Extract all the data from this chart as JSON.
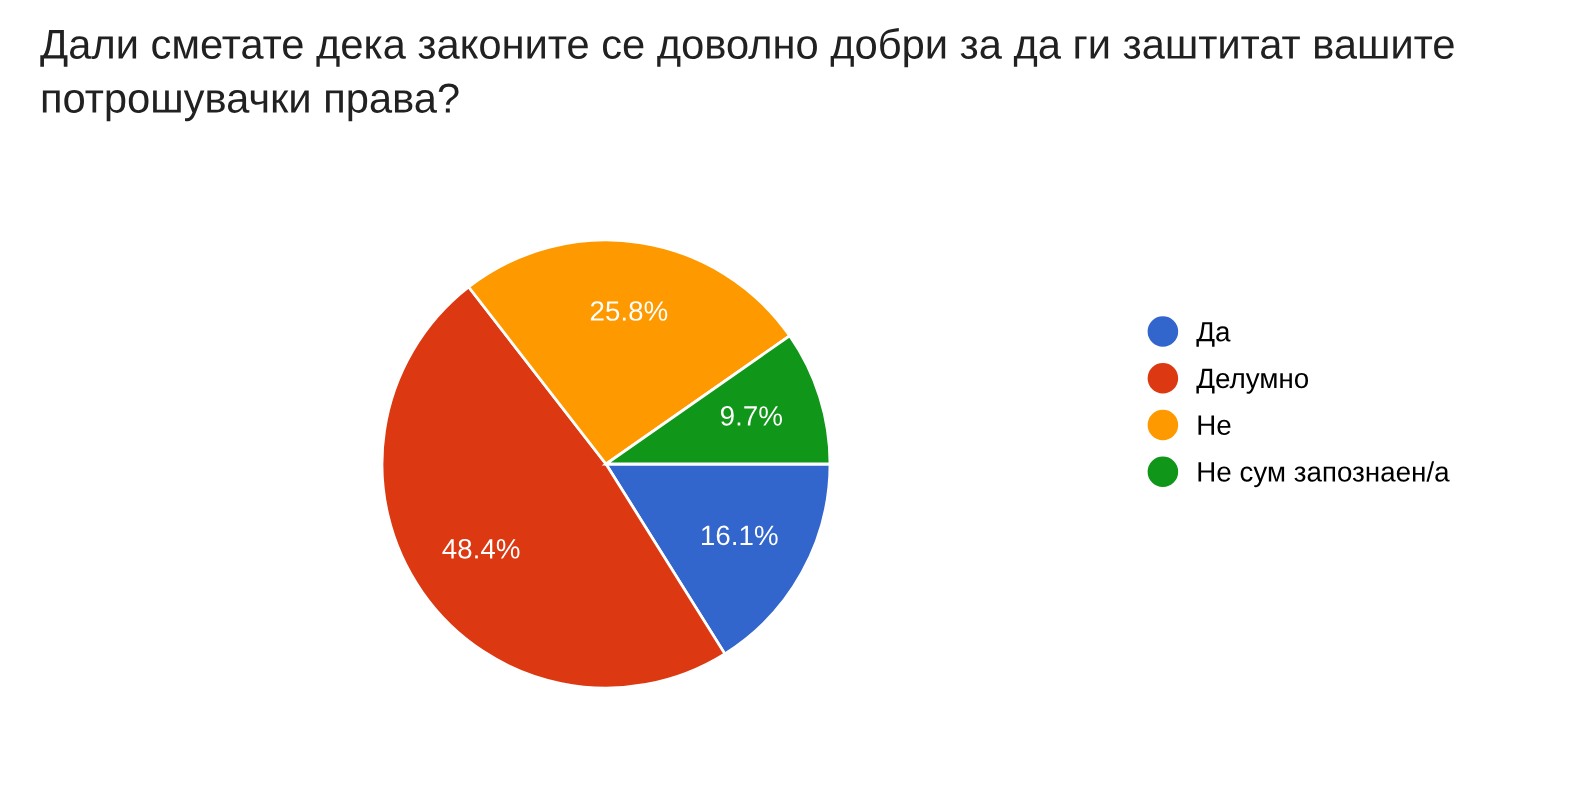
{
  "chart_data": {
    "type": "pie",
    "title": "Дали сметате дека законите се доволно добри за да ги заштитат вашите потрошувачки права?",
    "categories": [
      "Да",
      "Делумно",
      "Не",
      "Не сум запознаен/а"
    ],
    "values": [
      16.1,
      48.4,
      25.8,
      9.7
    ],
    "value_labels": [
      "16.1%",
      "48.4%",
      "25.8%",
      "9.7%"
    ],
    "colors": [
      "#3366cc",
      "#dc3912",
      "#ff9900",
      "#109618"
    ],
    "legend": "right"
  }
}
